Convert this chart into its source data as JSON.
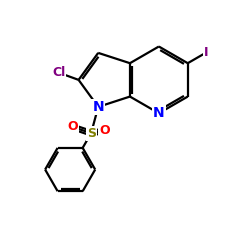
{
  "background_color": "#ffffff",
  "atom_colors": {
    "N": "#0000ff",
    "Cl": "#800080",
    "I": "#800080",
    "S": "#808000",
    "O": "#ff0000",
    "C": "#000000"
  },
  "bond_color": "#000000",
  "bond_width": 1.6,
  "figsize": [
    2.5,
    2.5
  ],
  "dpi": 100,
  "xlim": [
    0,
    10
  ],
  "ylim": [
    0,
    10
  ]
}
